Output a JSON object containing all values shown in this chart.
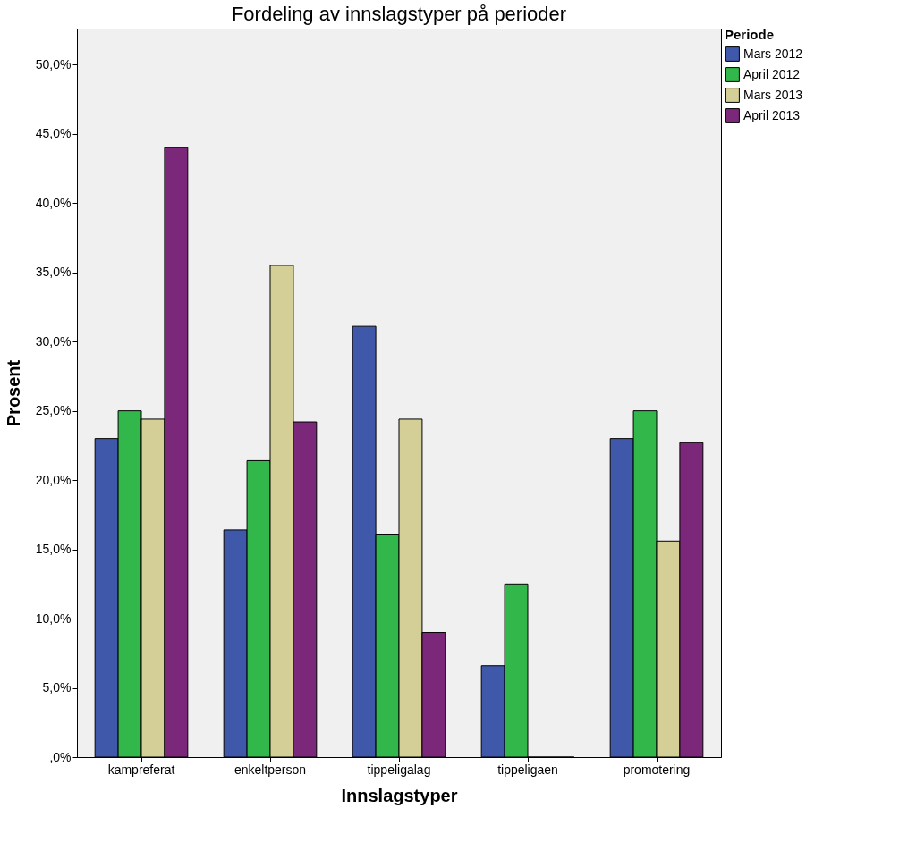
{
  "chart_data": {
    "type": "bar",
    "title": "Fordeling av innslagstyper på perioder",
    "xlabel": "Innslagstyper",
    "ylabel": "Prosent",
    "legend_title": "Periode",
    "legend": "right",
    "grid": false,
    "categories": [
      "kampreferat",
      "enkeltperson",
      "tippeligalag",
      "tippeligaen",
      "promotering"
    ],
    "series": [
      {
        "name": "Mars 2012",
        "color": "#3f58aa",
        "values": [
          23.0,
          16.4,
          31.1,
          6.6,
          23.0
        ]
      },
      {
        "name": "April 2012",
        "color": "#31b74a",
        "values": [
          25.0,
          21.4,
          16.1,
          12.5,
          25.0
        ]
      },
      {
        "name": "Mars 2013",
        "color": "#d4cf96",
        "values": [
          24.4,
          35.5,
          24.4,
          0,
          15.6
        ]
      },
      {
        "name": "April 2013",
        "color": "#7b287a",
        "values": [
          44.0,
          24.2,
          9.0,
          0,
          22.7
        ]
      }
    ],
    "ylim": [
      0,
      52.6
    ],
    "yticks": [
      {
        "value": 0,
        "label": ",0%"
      },
      {
        "value": 5,
        "label": "5,0%"
      },
      {
        "value": 10,
        "label": "10,0%"
      },
      {
        "value": 15,
        "label": "15,0%"
      },
      {
        "value": 20,
        "label": "20,0%"
      },
      {
        "value": 25,
        "label": "25,0%"
      },
      {
        "value": 30,
        "label": "30,0%"
      },
      {
        "value": 35,
        "label": "35,0%"
      },
      {
        "value": 40,
        "label": "40,0%"
      },
      {
        "value": 45,
        "label": "45,0%"
      },
      {
        "value": 50,
        "label": "50,0%"
      }
    ]
  }
}
